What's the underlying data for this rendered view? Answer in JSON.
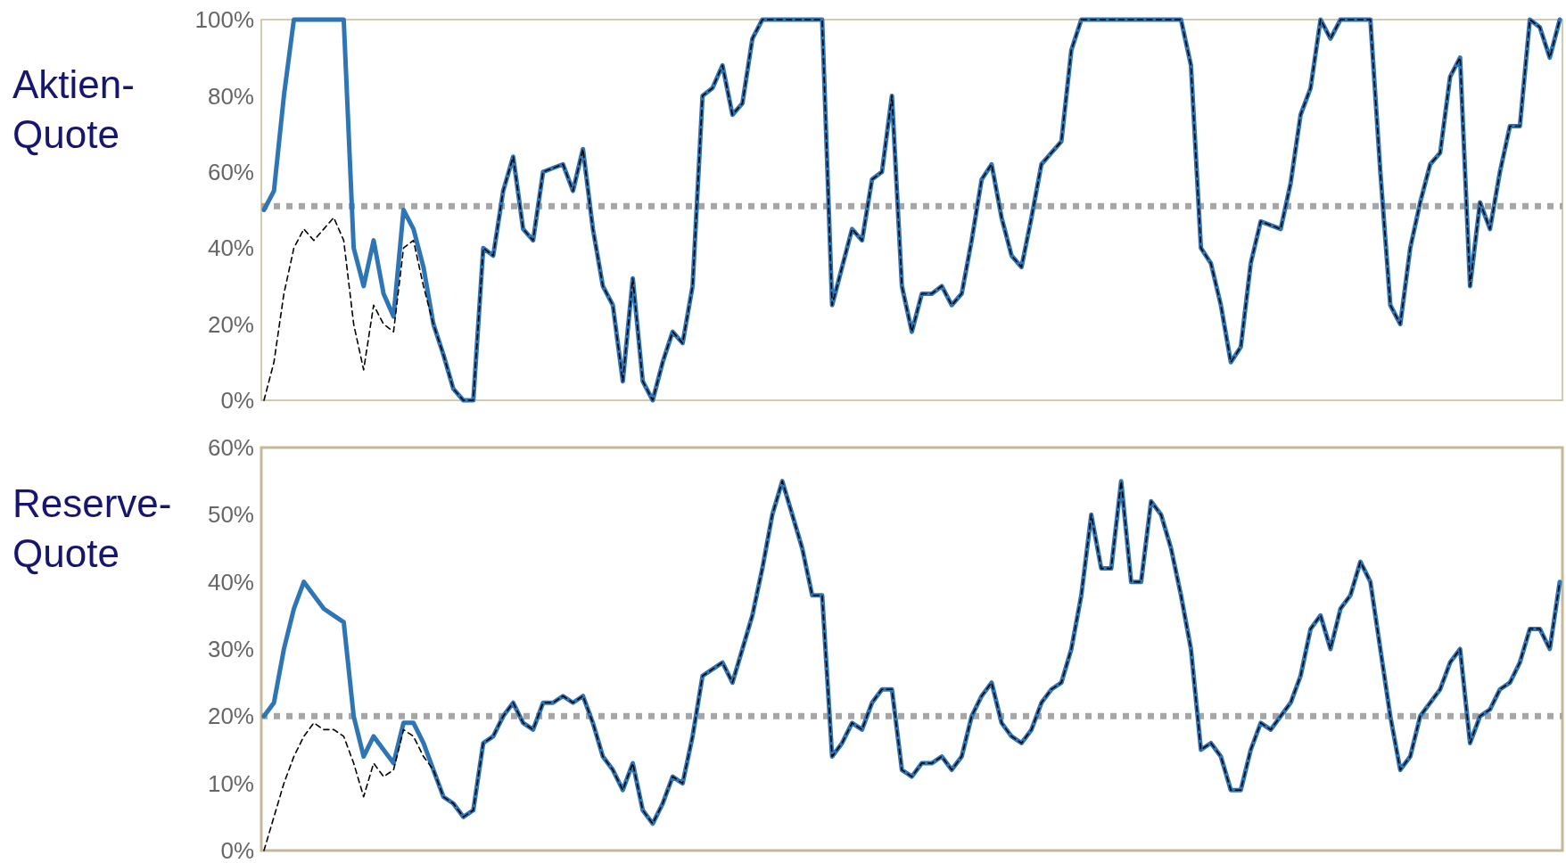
{
  "chart_data": [
    {
      "type": "line",
      "ylabel": "Aktien-Quote",
      "categories": [
        null,
        null,
        null,
        null,
        null,
        null,
        null,
        null,
        null,
        null,
        null,
        null,
        null,
        null,
        null,
        null,
        null,
        null,
        null,
        null,
        null,
        null,
        null,
        null,
        null,
        null,
        null,
        null,
        null,
        null,
        null,
        null,
        null,
        null,
        null,
        null,
        null,
        null,
        null,
        null,
        null,
        null,
        null,
        null,
        null,
        null,
        null,
        null,
        null,
        null,
        null,
        null,
        null,
        null,
        null,
        null,
        null,
        null,
        null,
        null,
        null,
        null,
        null,
        null,
        null,
        null,
        null,
        null,
        null,
        null,
        null,
        null,
        null,
        null,
        null,
        null,
        null,
        null,
        null,
        null,
        null,
        null,
        null,
        null,
        null,
        null,
        null,
        null,
        null,
        null,
        null,
        null,
        null,
        null,
        null,
        null,
        null,
        null,
        null,
        null,
        null,
        null,
        null,
        null,
        null,
        null,
        null,
        null,
        null,
        null,
        null,
        null,
        null,
        null,
        null,
        null,
        null,
        null,
        null,
        null,
        null,
        null,
        null,
        null,
        null,
        null,
        null,
        null,
        null,
        null,
        null
      ],
      "ylim": [
        0,
        100
      ],
      "yticks": [
        {
          "value": 0,
          "label": "0%"
        },
        {
          "value": 20,
          "label": "20%"
        },
        {
          "value": 40,
          "label": "40%"
        },
        {
          "value": 60,
          "label": "60%"
        },
        {
          "value": 80,
          "label": "80%"
        },
        {
          "value": 100,
          "label": "100%"
        }
      ],
      "tick_labels": "y",
      "ref_lines": [
        {
          "axis": "y",
          "value": 51,
          "color": "#a6a6a6",
          "line_style": "dotted"
        }
      ],
      "series": [
        {
          "color": "#2e75b6",
          "line_style": "solid",
          "values": [
            50,
            55,
            80,
            100,
            100,
            100,
            100,
            100,
            100,
            40,
            30,
            42,
            28,
            22,
            50,
            45,
            35,
            20,
            12,
            3,
            0,
            0,
            40,
            38,
            55,
            64,
            45,
            42,
            60,
            61,
            62,
            55,
            66,
            45,
            30,
            25,
            5,
            32,
            5,
            0,
            10,
            18,
            15,
            30,
            80,
            82,
            88,
            75,
            78,
            95,
            100,
            100,
            100,
            100,
            100,
            100,
            100,
            25,
            35,
            45,
            42,
            58,
            60,
            80,
            30,
            18,
            28,
            28,
            30,
            25,
            28,
            42,
            58,
            62,
            48,
            38,
            35,
            48,
            62,
            65,
            68,
            92,
            100,
            100,
            100,
            100,
            100,
            100,
            100,
            100,
            100,
            100,
            100,
            88,
            40,
            36,
            25,
            10,
            14,
            36,
            47,
            46,
            45,
            57,
            75,
            82,
            100,
            95,
            100,
            100,
            100,
            100,
            60,
            25,
            20,
            40,
            52,
            62,
            65,
            85,
            90,
            30,
            52,
            45,
            60,
            72,
            72,
            100,
            98,
            90,
            100
          ]
        },
        {
          "color": "#000000",
          "line_style": "dashed",
          "values": [
            0,
            10,
            28,
            40,
            45,
            42,
            45,
            48,
            42,
            20,
            8,
            25,
            20,
            18,
            40,
            42,
            30,
            20,
            12,
            3,
            0,
            0,
            40,
            38,
            55,
            64,
            45,
            42,
            60,
            61,
            62,
            55,
            66,
            45,
            30,
            25,
            5,
            32,
            5,
            0,
            10,
            18,
            15,
            30,
            80,
            82,
            88,
            75,
            78,
            95,
            100,
            100,
            100,
            100,
            100,
            100,
            100,
            25,
            35,
            45,
            42,
            58,
            60,
            80,
            30,
            18,
            28,
            28,
            30,
            25,
            28,
            42,
            58,
            62,
            48,
            38,
            35,
            48,
            62,
            65,
            68,
            92,
            100,
            100,
            100,
            100,
            100,
            100,
            100,
            100,
            100,
            100,
            100,
            88,
            40,
            36,
            25,
            10,
            14,
            36,
            47,
            46,
            45,
            57,
            75,
            82,
            100,
            95,
            100,
            100,
            100,
            100,
            60,
            25,
            20,
            40,
            52,
            62,
            65,
            85,
            90,
            30,
            52,
            45,
            60,
            72,
            72,
            100,
            98,
            90,
            100
          ]
        }
      ]
    },
    {
      "type": "line",
      "ylabel": "Reserve-Quote",
      "categories": [
        null,
        null,
        null,
        null,
        null,
        null,
        null,
        null,
        null,
        null,
        null,
        null,
        null,
        null,
        null,
        null,
        null,
        null,
        null,
        null,
        null,
        null,
        null,
        null,
        null,
        null,
        null,
        null,
        null,
        null,
        null,
        null,
        null,
        null,
        null,
        null,
        null,
        null,
        null,
        null,
        null,
        null,
        null,
        null,
        null,
        null,
        null,
        null,
        null,
        null,
        null,
        null,
        null,
        null,
        null,
        null,
        null,
        null,
        null,
        null,
        null,
        null,
        null,
        null,
        null,
        null,
        null,
        null,
        null,
        null,
        null,
        null,
        null,
        null,
        null,
        null,
        null,
        null,
        null,
        null,
        null,
        null,
        null,
        null,
        null,
        null,
        null,
        null,
        null,
        null,
        null,
        null,
        null,
        null,
        null,
        null,
        null,
        null,
        null,
        null,
        null,
        null,
        null,
        null,
        null,
        null,
        null,
        null,
        null,
        null,
        null,
        null,
        null,
        null,
        null,
        null,
        null,
        null,
        null,
        null,
        null,
        null,
        null,
        null,
        null,
        null,
        null,
        null,
        null,
        null,
        null
      ],
      "ylim": [
        0,
        60
      ],
      "yticks": [
        {
          "value": 0,
          "label": "0%"
        },
        {
          "value": 10,
          "label": "10%"
        },
        {
          "value": 20,
          "label": "20%"
        },
        {
          "value": 30,
          "label": "30%"
        },
        {
          "value": 40,
          "label": "40%"
        },
        {
          "value": 50,
          "label": "50%"
        },
        {
          "value": 60,
          "label": "60%"
        }
      ],
      "tick_labels": "y",
      "ref_lines": [
        {
          "axis": "y",
          "value": 20,
          "color": "#a6a6a6",
          "line_style": "dotted"
        }
      ],
      "series": [
        {
          "color": "#2e75b6",
          "line_style": "solid",
          "values": [
            20,
            22,
            30,
            36,
            40,
            38,
            36,
            35,
            34,
            20,
            14,
            17,
            15,
            13,
            19,
            19,
            16,
            12,
            8,
            7,
            5,
            6,
            16,
            17,
            20,
            22,
            19,
            18,
            22,
            22,
            23,
            22,
            23,
            19,
            14,
            12,
            9,
            13,
            6,
            4,
            7,
            11,
            10,
            17,
            26,
            27,
            28,
            25,
            30,
            35,
            42,
            50,
            55,
            50,
            45,
            38,
            38,
            14,
            16,
            19,
            18,
            22,
            24,
            24,
            12,
            11,
            13,
            13,
            14,
            12,
            14,
            20,
            23,
            25,
            19,
            17,
            16,
            18,
            22,
            24,
            25,
            30,
            38,
            50,
            42,
            42,
            55,
            40,
            40,
            52,
            50,
            45,
            38,
            30,
            15,
            16,
            14,
            9,
            9,
            15,
            19,
            18,
            20,
            22,
            26,
            33,
            35,
            30,
            36,
            38,
            43,
            40,
            30,
            20,
            12,
            14,
            20,
            22,
            24,
            28,
            30,
            16,
            20,
            21,
            24,
            25,
            28,
            33,
            33,
            30,
            40
          ]
        },
        {
          "color": "#000000",
          "line_style": "dashed",
          "values": [
            0,
            5,
            10,
            14,
            17,
            19,
            18,
            18,
            17,
            13,
            8,
            13,
            11,
            12,
            18,
            17,
            14,
            12,
            8,
            7,
            5,
            6,
            16,
            17,
            20,
            22,
            19,
            18,
            22,
            22,
            23,
            22,
            23,
            19,
            14,
            12,
            9,
            13,
            6,
            4,
            7,
            11,
            10,
            17,
            26,
            27,
            28,
            25,
            30,
            35,
            42,
            50,
            55,
            50,
            45,
            38,
            38,
            14,
            16,
            19,
            18,
            22,
            24,
            24,
            12,
            11,
            13,
            13,
            14,
            12,
            14,
            20,
            23,
            25,
            19,
            17,
            16,
            18,
            22,
            24,
            25,
            30,
            38,
            50,
            42,
            42,
            55,
            40,
            40,
            52,
            50,
            45,
            38,
            30,
            15,
            16,
            14,
            9,
            9,
            15,
            19,
            18,
            20,
            22,
            26,
            33,
            35,
            30,
            36,
            38,
            43,
            40,
            30,
            20,
            12,
            14,
            20,
            22,
            24,
            28,
            30,
            16,
            20,
            21,
            24,
            25,
            28,
            33,
            33,
            30,
            40
          ]
        }
      ]
    }
  ]
}
